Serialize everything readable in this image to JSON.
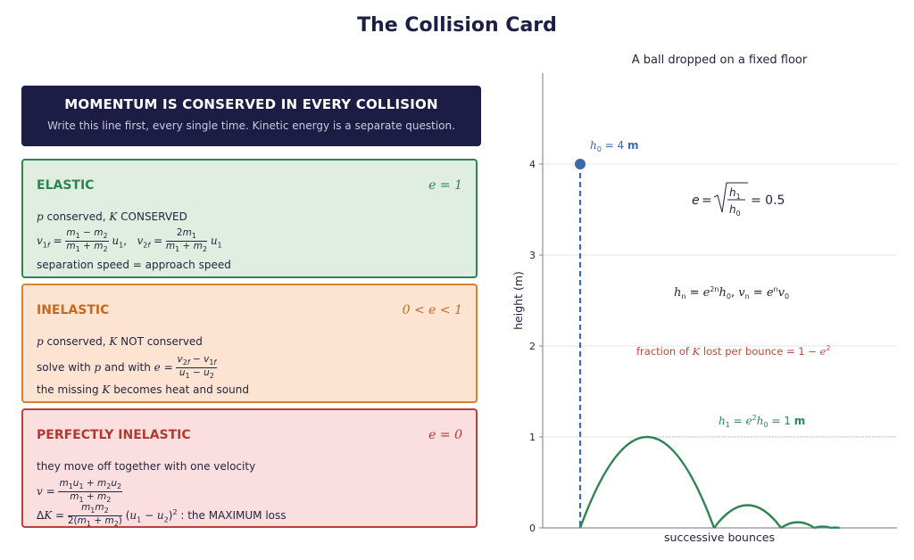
{
  "title": "The Collision Card",
  "banner": {
    "heading": "MOMENTUM IS CONSERVED IN EVERY COLLISION",
    "subtext": "Write this line first, every single time. Kinetic energy is a separate question."
  },
  "cards": {
    "elastic": {
      "name": "ELASTIC",
      "coef": "e = 1",
      "line1_a": "p",
      "line1_b": " conserved,  ",
      "line1_c": "K",
      "line1_d": " CONSERVED",
      "line3": "separation speed  =  approach speed"
    },
    "inelastic": {
      "name": "INELASTIC",
      "coef": "0 < e < 1",
      "line1_a": "p",
      "line1_b": " conserved,  ",
      "line1_c": "K",
      "line1_d": " NOT conserved",
      "line2_a": "solve with ",
      "line2_b": "p",
      "line2_c": " and with ",
      "line3_a": "the missing ",
      "line3_b": "K",
      "line3_c": " becomes heat and sound"
    },
    "perfect": {
      "name": "PERFECTLY INELASTIC",
      "coef": "e = 0",
      "line1": "they move off together with one velocity",
      "line3_tail": " : the MAXIMUM loss"
    }
  },
  "chart_data": {
    "type": "line",
    "title": "A ball dropped on a fixed floor",
    "xlabel": "successive bounces",
    "ylabel": "height  (m)",
    "ylim": [
      0,
      5
    ],
    "yticks": [
      "0",
      "1",
      "2",
      "3",
      "4"
    ],
    "grid": true,
    "series": [
      {
        "kind": "drop",
        "h0": 4
      },
      {
        "kind": "bounces",
        "restitution": 0.5,
        "peaks": [
          1,
          0.25,
          0.0625,
          0.015625,
          0.0039
        ]
      }
    ],
    "annotations": {
      "h0": "h₀ = 4 m",
      "e_formula": "e = √(h₁/h₀) = 0.5",
      "hn_formula": "hₙ = e²ⁿh₀,   vₙ = eⁿv₀",
      "fraction": "fraction of K lost per bounce  = 1 − e²",
      "h1": "h₁ = e²h₀ = 1 m"
    },
    "colors": {
      "drop": "#3d6aa9",
      "bounce": "#2e8553",
      "fraction": "#b54a3c",
      "text": "#1f2340"
    }
  }
}
